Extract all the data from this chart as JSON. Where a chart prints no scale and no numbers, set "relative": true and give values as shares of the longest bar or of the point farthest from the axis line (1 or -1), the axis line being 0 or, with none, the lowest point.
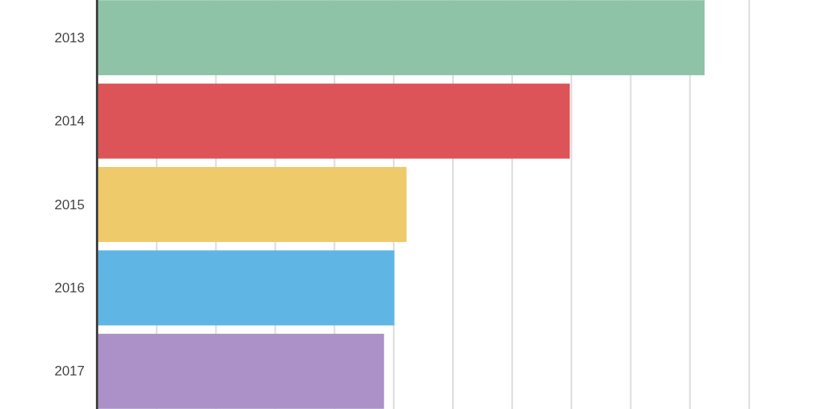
{
  "chart_data": {
    "type": "bar",
    "orientation": "horizontal",
    "relative": true,
    "categories": [
      "2013",
      "2014",
      "2015",
      "2016",
      "2017"
    ],
    "values": [
      1,
      0.778,
      0.509,
      0.489,
      0.472
    ],
    "colors": [
      "#8fc3a7",
      "#dc5457",
      "#efca6b",
      "#5fb6e4",
      "#ab91c8"
    ],
    "grid": "x"
  }
}
